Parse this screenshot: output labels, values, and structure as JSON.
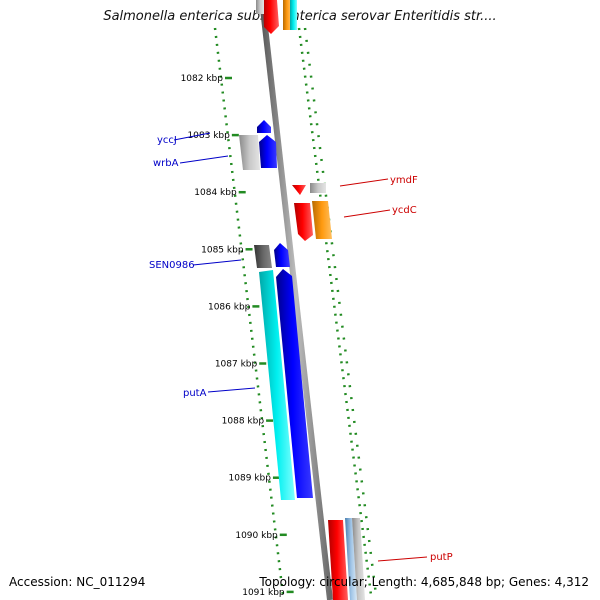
{
  "title": "Salmonella enterica subsp. enterica serovar Enteritidis str....",
  "footer": {
    "accession": "Accession: NC_011294",
    "topology": "Topology: circular; Length: 4,685,848 bp; Genes: 4,312"
  },
  "ruler": {
    "ticks": [
      {
        "label": "1082 kbp",
        "kbp": 1082
      },
      {
        "label": "1083 kbp",
        "kbp": 1083
      },
      {
        "label": "1084 kbp",
        "kbp": 1084
      },
      {
        "label": "1085 kbp",
        "kbp": 1085
      },
      {
        "label": "1086 kbp",
        "kbp": 1086
      },
      {
        "label": "1087 kbp",
        "kbp": 1087
      },
      {
        "label": "1088 kbp",
        "kbp": 1088
      },
      {
        "label": "1089 kbp",
        "kbp": 1089
      },
      {
        "label": "1090 kbp",
        "kbp": 1090
      },
      {
        "label": "1091 kbp",
        "kbp": 1091
      }
    ]
  },
  "gene_labels": [
    {
      "name": "yccJ",
      "strand": "forward",
      "color": "#0000c8"
    },
    {
      "name": "wrbA",
      "strand": "forward",
      "color": "#0000c8"
    },
    {
      "name": "ymdF",
      "strand": "reverse",
      "color": "#cc0000"
    },
    {
      "name": "ycdC",
      "strand": "reverse",
      "color": "#cc0000"
    },
    {
      "name": "SEN0986",
      "strand": "forward",
      "color": "#0000c8"
    },
    {
      "name": "putA",
      "strand": "forward",
      "color": "#0000c8"
    },
    {
      "name": "putP",
      "strand": "reverse",
      "color": "#cc0000"
    }
  ],
  "colors": {
    "forward": "#0000ff",
    "reverse": "#ff0000",
    "cyan": "#00e5e5",
    "orange": "#f08c00",
    "grey": "#a6a6a6",
    "darkgrey": "#555555",
    "tick": "#228b22",
    "backbone": "#888888"
  }
}
